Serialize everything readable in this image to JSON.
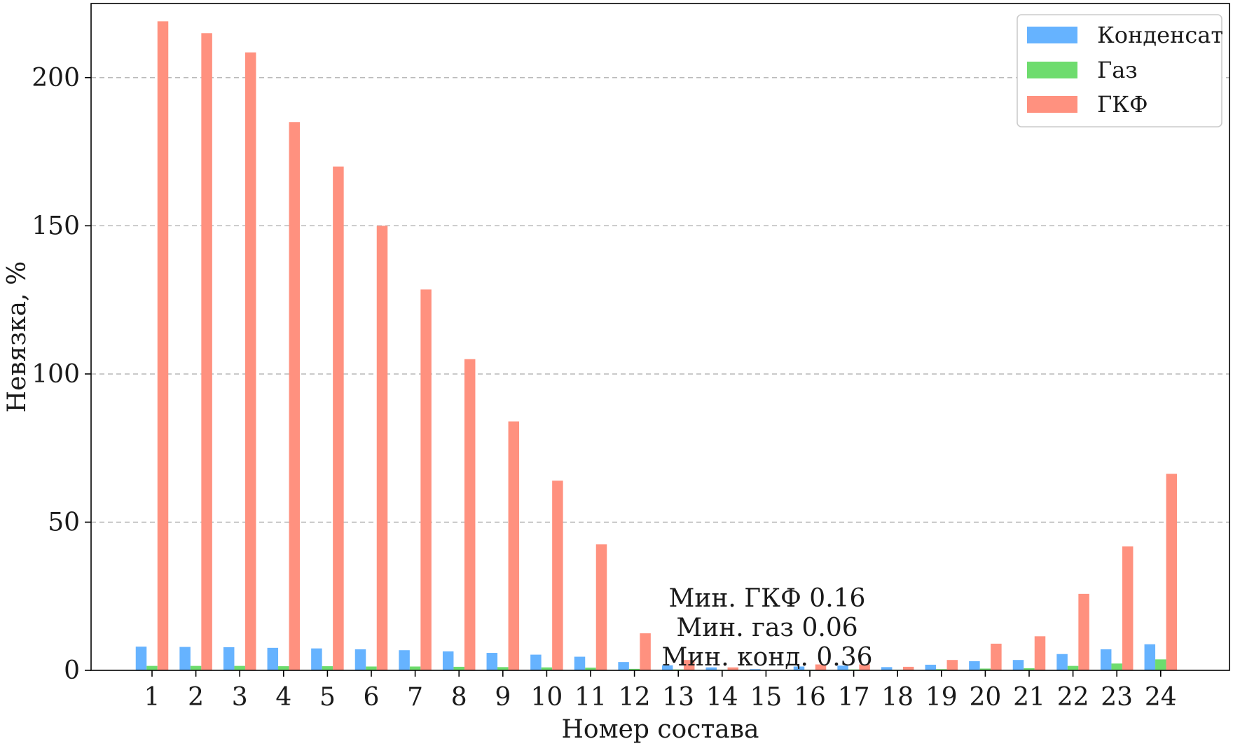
{
  "chart_data": {
    "type": "bar",
    "title": "",
    "xlabel": "Номер состава",
    "ylabel": "Невязка, %",
    "categories": [
      "1",
      "2",
      "3",
      "4",
      "5",
      "6",
      "7",
      "8",
      "9",
      "10",
      "11",
      "12",
      "13",
      "14",
      "15",
      "16",
      "17",
      "18",
      "19",
      "20",
      "21",
      "22",
      "23",
      "24"
    ],
    "ylim": [
      0,
      225
    ],
    "yticks": [
      0,
      50,
      100,
      150,
      200
    ],
    "grid": "y-dashed",
    "legend_position": "top-right",
    "series": [
      {
        "name": "Конденсат",
        "color": "#66b3ff",
        "values": [
          8.0,
          7.9,
          7.8,
          7.6,
          7.4,
          7.1,
          6.8,
          6.4,
          5.9,
          5.3,
          4.6,
          2.8,
          1.7,
          1.0,
          0.4,
          1.3,
          1.6,
          1.1,
          1.9,
          3.1,
          3.5,
          5.5,
          7.1,
          8.8
        ]
      },
      {
        "name": "Газ",
        "color": "#6edc6e",
        "values": [
          1.5,
          1.5,
          1.5,
          1.4,
          1.4,
          1.3,
          1.3,
          1.2,
          1.1,
          1.0,
          0.9,
          0.5,
          0.3,
          0.2,
          0.06,
          0.2,
          0.3,
          0.2,
          0.4,
          0.6,
          0.7,
          1.5,
          2.3,
          3.7
        ]
      },
      {
        "name": "ГКФ",
        "color": "#ff917f",
        "values": [
          219,
          215,
          208.5,
          185,
          170,
          150,
          128.5,
          105,
          84,
          64,
          42.5,
          12.5,
          3.5,
          1.0,
          0.16,
          2.0,
          2.0,
          1.2,
          3.5,
          9.0,
          11.5,
          25.8,
          41.8,
          66.3
        ]
      }
    ],
    "annotations": [
      "Мин. ГКФ 0.16",
      "Мин. газ 0.06",
      "Мин. конд. 0.36"
    ]
  }
}
